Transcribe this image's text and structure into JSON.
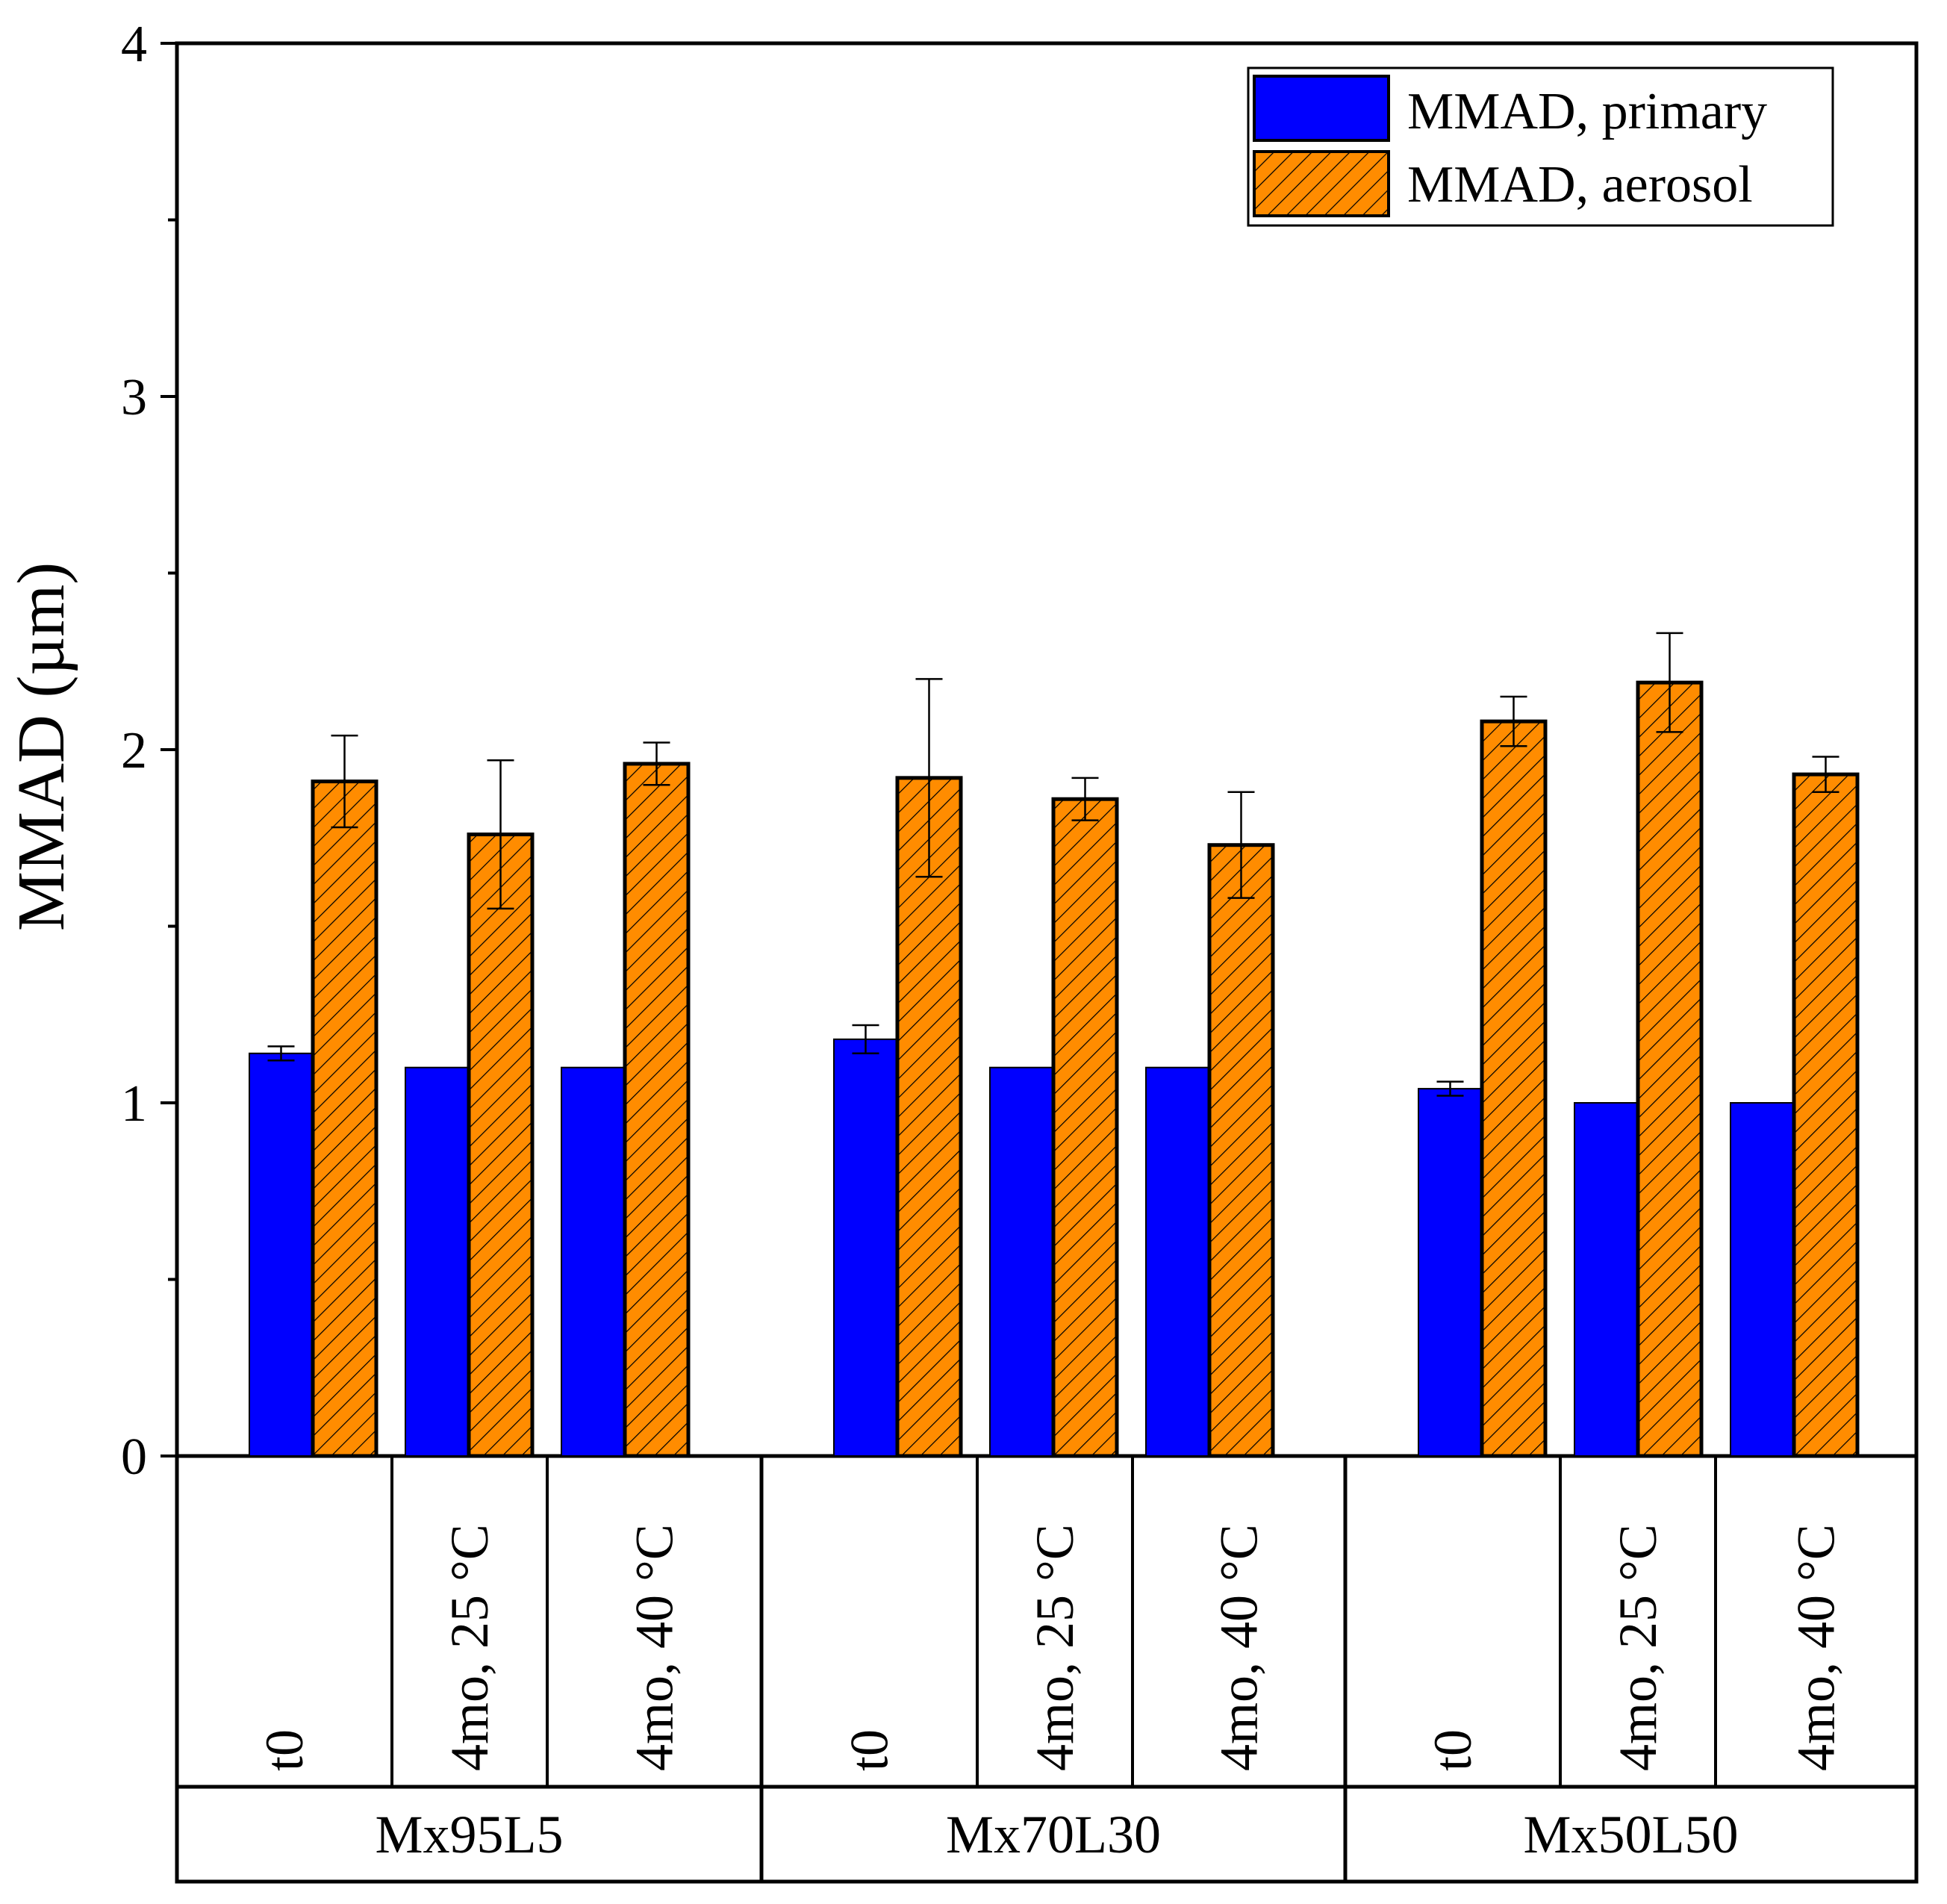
{
  "chart_data": {
    "type": "bar",
    "title": "",
    "xlabel": "",
    "ylabel": "MMAD (µm)",
    "ylim": [
      0,
      4
    ],
    "yticks": [
      0,
      1,
      2,
      3,
      4
    ],
    "ytick_labels": [
      "0",
      "1",
      "2",
      "3",
      "4"
    ],
    "groups": [
      {
        "label": "Mx95L5",
        "categories": [
          "t0",
          "4mo, 25 °C",
          "4mo, 40 °C"
        ]
      },
      {
        "label": "Mx70L30",
        "categories": [
          "t0",
          "4mo, 25 °C",
          "4mo, 40 °C"
        ]
      },
      {
        "label": "Mx50L50",
        "categories": [
          "t0",
          "4mo, 25 °C",
          "4mo, 40 °C"
        ]
      }
    ],
    "series": [
      {
        "name": "MMAD, primary",
        "color": "#0000ff",
        "pattern": "solid",
        "values": [
          1.14,
          1.1,
          1.1,
          1.18,
          1.1,
          1.1,
          1.04,
          1.0,
          1.0
        ],
        "errors": [
          0.02,
          0,
          0,
          0.04,
          0,
          0,
          0.02,
          0,
          0
        ]
      },
      {
        "name": "MMAD, aerosol",
        "color": "#ff8c00",
        "pattern": "hatched",
        "values": [
          1.91,
          1.76,
          1.96,
          1.92,
          1.86,
          1.73,
          2.08,
          2.19,
          1.93
        ],
        "errors": [
          0.13,
          0.21,
          0.06,
          0.28,
          0.06,
          0.15,
          0.07,
          0.14,
          0.05
        ]
      }
    ],
    "legend_position": "top-right",
    "grid": false
  }
}
